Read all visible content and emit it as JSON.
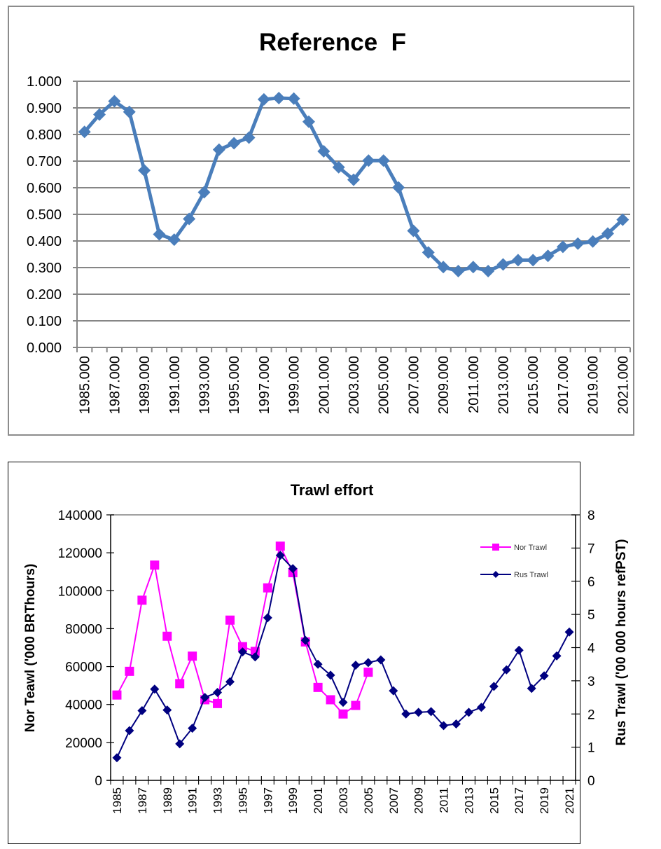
{
  "chart_data": [
    {
      "type": "line",
      "title": "Reference  F",
      "xlabel": "",
      "ylabel": "",
      "ylim": [
        0,
        1
      ],
      "yticks": [
        "0.000",
        "0.100",
        "0.200",
        "0.300",
        "0.400",
        "0.500",
        "0.600",
        "0.700",
        "0.800",
        "0.900",
        "1.000"
      ],
      "xtick_labels": [
        "1985.000",
        "1987.000",
        "1989.000",
        "1991.000",
        "1993.000",
        "1995.000",
        "1997.000",
        "1999.000",
        "2001.000",
        "2003.000",
        "2005.000",
        "2007.000",
        "2009.000",
        "2011.000",
        "2013.000",
        "2015.000",
        "2017.000",
        "2019.000",
        "2021.000"
      ],
      "grid": true,
      "legend": "none",
      "color": "#4a7ebb",
      "x": [
        1985,
        1986,
        1987,
        1988,
        1989,
        1990,
        1991,
        1992,
        1993,
        1994,
        1995,
        1996,
        1997,
        1998,
        1999,
        2000,
        2001,
        2002,
        2003,
        2004,
        2005,
        2006,
        2007,
        2008,
        2009,
        2010,
        2011,
        2012,
        2013,
        2014,
        2015,
        2016,
        2017,
        2018,
        2019,
        2020,
        2021
      ],
      "values": [
        0.81,
        0.875,
        0.925,
        0.885,
        0.665,
        0.425,
        0.405,
        0.483,
        0.583,
        0.743,
        0.767,
        0.788,
        0.932,
        0.937,
        0.935,
        0.848,
        0.737,
        0.677,
        0.63,
        0.702,
        0.702,
        0.601,
        0.438,
        0.357,
        0.302,
        0.287,
        0.302,
        0.287,
        0.312,
        0.328,
        0.328,
        0.344,
        0.378,
        0.39,
        0.398,
        0.428,
        0.48
      ]
    },
    {
      "type": "line",
      "title": "Trawl effort",
      "xlabel": "",
      "ylabel": "Nor Teawl ('000 BRThours)",
      "ylabel_right": "Rus Trawl ('00 000 hours refPST)",
      "ylim": [
        0,
        140000
      ],
      "ylim_right": [
        0,
        8
      ],
      "yticks": [
        "0",
        "20000",
        "40000",
        "60000",
        "80000",
        "100000",
        "120000",
        "140000"
      ],
      "yticks_right": [
        "0",
        "1",
        "2",
        "3",
        "4",
        "5",
        "6",
        "7",
        "8"
      ],
      "xtick_labels": [
        "1985",
        "1987",
        "1989",
        "1991",
        "1993",
        "1995",
        "1997",
        "1999",
        "2001",
        "2003",
        "2005",
        "2007",
        "2009",
        "2011",
        "2013",
        "2015",
        "2017",
        "2019",
        "2021"
      ],
      "grid": false,
      "legend": "top-right",
      "series": [
        {
          "name": "Nor Trawl",
          "axis": "left",
          "color": "#ff00ff",
          "marker": "square",
          "x": [
            1985,
            1986,
            1987,
            1988,
            1989,
            1990,
            1991,
            1992,
            1993,
            1994,
            1995,
            1996,
            1997,
            1998,
            1999,
            2000,
            2001,
            2002,
            2003,
            2004,
            2005
          ],
          "values": [
            45000,
            57500,
            95000,
            113500,
            76000,
            51000,
            65500,
            42500,
            40500,
            84500,
            70500,
            68000,
            101500,
            123500,
            109500,
            73000,
            49000,
            42500,
            35000,
            39500,
            57000
          ]
        },
        {
          "name": "Rus Trawl",
          "axis": "right",
          "color": "#000080",
          "marker": "diamond",
          "x": [
            1985,
            1986,
            1987,
            1988,
            1989,
            1990,
            1991,
            1992,
            1993,
            1994,
            1995,
            1996,
            1997,
            1998,
            1999,
            2000,
            2001,
            2002,
            2003,
            2004,
            2005,
            2006,
            2007,
            2008,
            2009,
            2010,
            2011,
            2012,
            2013,
            2014,
            2015,
            2016,
            2017,
            2018,
            2019,
            2020,
            2021
          ],
          "values": [
            0.68,
            1.5,
            2.1,
            2.75,
            2.12,
            1.1,
            1.57,
            2.5,
            2.65,
            2.97,
            3.87,
            3.72,
            4.9,
            6.78,
            6.38,
            4.22,
            3.5,
            3.17,
            2.35,
            3.47,
            3.55,
            3.63,
            2.7,
            2.0,
            2.05,
            2.07,
            1.65,
            1.7,
            2.05,
            2.2,
            2.83,
            3.33,
            3.92,
            2.77,
            3.15,
            3.75,
            4.47
          ]
        }
      ]
    }
  ]
}
